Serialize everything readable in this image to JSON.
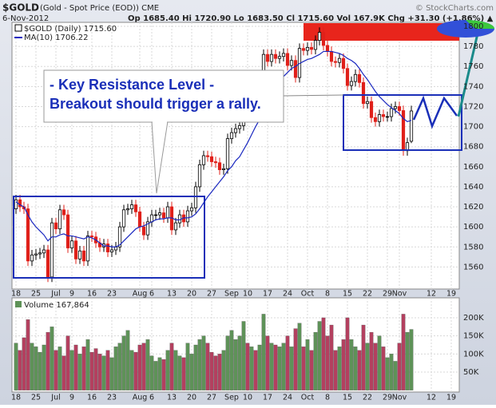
{
  "chart_data": {
    "type": "candlestick",
    "title": "$GOLD",
    "subtitle": "(Gold - Spot Price (EOD)) CME",
    "date": "6-Nov-2012",
    "quote": "Op 1685.40 Hi 1720.90 Lo 1683.50 Cl 1715.60 Vol 167.9K Chg +31.30 (+1.86%) ▲",
    "copyright": "© StockCharts.com",
    "price_legend": "$GOLD (Daily) 1715.60",
    "ma_legend": "MA(10) 1706.22",
    "volume_legend": "Volume 167,864",
    "annotation": [
      "- Key Resistance Level -",
      "Breakout should trigger a rally."
    ],
    "up_color": "#000000",
    "down_color": "#e0201a",
    "ma_color": "#1a28c0",
    "volume_up_color": "#5e9258",
    "volume_down_color": "#b3405f",
    "xlim": [
      -1,
      111
    ],
    "xticks": [
      {
        "value": 0,
        "label": "18"
      },
      {
        "value": 5,
        "label": "25"
      },
      {
        "value": 10,
        "label": "Jul"
      },
      {
        "value": 14,
        "label": "9"
      },
      {
        "value": 19,
        "label": "16"
      },
      {
        "value": 24,
        "label": "23"
      },
      {
        "value": 31,
        "label": "Aug"
      },
      {
        "value": 34,
        "label": "6"
      },
      {
        "value": 39,
        "label": "13"
      },
      {
        "value": 44,
        "label": "20"
      },
      {
        "value": 49,
        "label": "27"
      },
      {
        "value": 54,
        "label": "Sep"
      },
      {
        "value": 58,
        "label": "10"
      },
      {
        "value": 63,
        "label": "17"
      },
      {
        "value": 68,
        "label": "24"
      },
      {
        "value": 73,
        "label": "Oct"
      },
      {
        "value": 78,
        "label": "8"
      },
      {
        "value": 83,
        "label": "15"
      },
      {
        "value": 88,
        "label": "22"
      },
      {
        "value": 93,
        "label": "29"
      },
      {
        "value": 96,
        "label": "Nov"
      },
      {
        "value": 104,
        "label": "12"
      },
      {
        "value": 109,
        "label": "19"
      }
    ],
    "ylim": [
      1538,
      1804
    ],
    "yticks": [
      1560,
      1580,
      1600,
      1620,
      1640,
      1660,
      1680,
      1700,
      1720,
      1740,
      1760,
      1780,
      1800
    ],
    "volume_ylim": [
      -5,
      255
    ],
    "volume_yticks": [
      {
        "value": 50,
        "label": "50K"
      },
      {
        "value": 100,
        "label": "100K"
      },
      {
        "value": 150,
        "label": "150K"
      },
      {
        "value": 200,
        "label": "200K"
      }
    ],
    "open": [
      1618,
      1627,
      1620,
      1618,
      1566,
      1572,
      1573,
      1574,
      1577,
      1550,
      1604,
      1598,
      1617,
      1612,
      1579,
      1586,
      1568,
      1576,
      1566,
      1591,
      1590,
      1584,
      1580,
      1583,
      1575,
      1577,
      1580,
      1600,
      1617,
      1618,
      1622,
      1615,
      1600,
      1592,
      1605,
      1612,
      1612,
      1614,
      1609,
      1620,
      1597,
      1604,
      1612,
      1605,
      1616,
      1619,
      1640,
      1662,
      1671,
      1670,
      1665,
      1664,
      1657,
      1658,
      1688,
      1694,
      1698,
      1701,
      1738,
      1732,
      1736,
      1733,
      1735,
      1772,
      1765,
      1772,
      1768,
      1770,
      1773,
      1761,
      1766,
      1749,
      1778,
      1776,
      1779,
      1777,
      1786,
      1794,
      1781,
      1775,
      1765,
      1764,
      1768,
      1758,
      1741,
      1745,
      1752,
      1744,
      1723,
      1725,
      1709,
      1705,
      1712,
      1710,
      1710,
      1718,
      1720,
      1716,
      1676,
      1685.4
    ],
    "high": [
      1632,
      1632,
      1625,
      1623,
      1577,
      1578,
      1579,
      1582,
      1582,
      1609,
      1609,
      1622,
      1622,
      1617,
      1591,
      1591,
      1581,
      1581,
      1596,
      1596,
      1595,
      1589,
      1588,
      1588,
      1582,
      1585,
      1605,
      1622,
      1623,
      1627,
      1627,
      1620,
      1605,
      1610,
      1617,
      1617,
      1619,
      1619,
      1625,
      1625,
      1609,
      1617,
      1617,
      1621,
      1624,
      1645,
      1667,
      1676,
      1676,
      1675,
      1670,
      1669,
      1663,
      1693,
      1699,
      1703,
      1706,
      1743,
      1743,
      1741,
      1741,
      1740,
      1777,
      1777,
      1777,
      1777,
      1775,
      1778,
      1778,
      1771,
      1771,
      1783,
      1783,
      1784,
      1784,
      1791,
      1799,
      1799,
      1786,
      1780,
      1770,
      1773,
      1773,
      1763,
      1750,
      1757,
      1757,
      1749,
      1730,
      1730,
      1714,
      1717,
      1717,
      1715,
      1723,
      1725,
      1725,
      1721,
      1689,
      1720.9
    ],
    "low": [
      1613,
      1615,
      1613,
      1561,
      1561,
      1567,
      1568,
      1569,
      1545,
      1545,
      1593,
      1593,
      1607,
      1574,
      1574,
      1563,
      1563,
      1561,
      1561,
      1585,
      1579,
      1575,
      1575,
      1570,
      1570,
      1572,
      1575,
      1595,
      1612,
      1613,
      1610,
      1595,
      1587,
      1587,
      1600,
      1607,
      1607,
      1604,
      1604,
      1592,
      1592,
      1599,
      1600,
      1600,
      1611,
      1614,
      1635,
      1657,
      1665,
      1660,
      1659,
      1652,
      1652,
      1653,
      1683,
      1689,
      1693,
      1696,
      1727,
      1727,
      1728,
      1728,
      1730,
      1760,
      1760,
      1763,
      1763,
      1765,
      1756,
      1756,
      1744,
      1744,
      1771,
      1771,
      1772,
      1772,
      1781,
      1776,
      1770,
      1760,
      1759,
      1759,
      1753,
      1736,
      1736,
      1740,
      1739,
      1718,
      1718,
      1704,
      1700,
      1700,
      1705,
      1705,
      1705,
      1713,
      1711,
      1671,
      1671,
      1683.5
    ],
    "close": [
      1627,
      1620,
      1618,
      1566,
      1572,
      1573,
      1574,
      1577,
      1550,
      1604,
      1598,
      1617,
      1612,
      1579,
      1586,
      1568,
      1576,
      1566,
      1591,
      1590,
      1584,
      1580,
      1583,
      1575,
      1577,
      1580,
      1600,
      1617,
      1618,
      1622,
      1615,
      1600,
      1592,
      1605,
      1612,
      1612,
      1614,
      1609,
      1620,
      1597,
      1604,
      1612,
      1605,
      1616,
      1619,
      1640,
      1662,
      1671,
      1670,
      1665,
      1664,
      1657,
      1658,
      1688,
      1694,
      1698,
      1701,
      1738,
      1732,
      1736,
      1733,
      1735,
      1772,
      1765,
      1772,
      1768,
      1770,
      1773,
      1761,
      1766,
      1749,
      1778,
      1776,
      1779,
      1777,
      1786,
      1794,
      1781,
      1775,
      1765,
      1764,
      1768,
      1758,
      1741,
      1745,
      1752,
      1744,
      1723,
      1725,
      1709,
      1705,
      1712,
      1710,
      1710,
      1718,
      1720,
      1716,
      1676,
      1684,
      1715.6
    ],
    "ma": [
      1625,
      1622,
      1620,
      1612,
      1605,
      1600,
      1596,
      1592,
      1586,
      1590,
      1590,
      1592,
      1593,
      1591,
      1591,
      1590,
      1589,
      1588,
      1590,
      1589,
      1587,
      1584,
      1581,
      1581,
      1580,
      1580,
      1582,
      1586,
      1590,
      1594,
      1598,
      1600,
      1601,
      1603,
      1605,
      1607,
      1608,
      1608,
      1609,
      1609,
      1607,
      1607,
      1609,
      1609,
      1610,
      1613,
      1618,
      1624,
      1630,
      1635,
      1640,
      1645,
      1650,
      1656,
      1660,
      1666,
      1670,
      1677,
      1684,
      1692,
      1700,
      1707,
      1715,
      1722,
      1730,
      1737,
      1744,
      1750,
      1754,
      1758,
      1760,
      1763,
      1765,
      1767,
      1768,
      1770,
      1772,
      1775,
      1775,
      1775,
      1774,
      1773,
      1771,
      1768,
      1766,
      1763,
      1758,
      1752,
      1747,
      1741,
      1735,
      1730,
      1726,
      1722,
      1719,
      1716,
      1713,
      1708,
      1705,
      1706.22
    ],
    "volume": [
      130,
      110,
      145,
      195,
      130,
      120,
      105,
      125,
      160,
      175,
      110,
      120,
      95,
      150,
      110,
      125,
      100,
      120,
      140,
      105,
      115,
      100,
      95,
      110,
      90,
      120,
      130,
      150,
      165,
      110,
      105,
      125,
      130,
      140,
      95,
      80,
      90,
      85,
      110,
      130,
      110,
      95,
      90,
      130,
      100,
      125,
      140,
      150,
      130,
      105,
      95,
      100,
      110,
      150,
      165,
      140,
      150,
      190,
      130,
      120,
      110,
      125,
      210,
      150,
      130,
      125,
      120,
      130,
      150,
      120,
      170,
      185,
      120,
      140,
      110,
      160,
      190,
      200,
      150,
      180,
      110,
      120,
      140,
      200,
      140,
      120,
      110,
      180,
      130,
      160,
      130,
      150,
      120,
      90,
      100,
      80,
      130,
      210,
      160,
      167.864
    ]
  }
}
